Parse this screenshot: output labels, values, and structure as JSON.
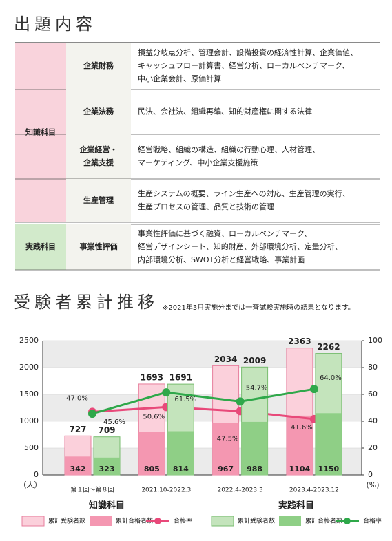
{
  "exam_content": {
    "title": "出題内容",
    "groups": [
      {
        "label": "知識科目",
        "rows": [
          {
            "subject": [
              "企業財務"
            ],
            "content": [
              "損益分岐点分析、管理会計、設備投資の経済性計算、企業価値、",
              "キャッシュフロー計算書、経営分析、ローカルベンチマーク、",
              "中小企業会計、原価計算"
            ]
          },
          {
            "subject": [
              "企業法務"
            ],
            "content": [
              "民法、会社法、組織再編、知的財産権に関する法律"
            ]
          },
          {
            "subject": [
              "企業経営・",
              "企業支援"
            ],
            "content": [
              "経営戦略、組織の構造、組織の行動心理、人材管理、",
              "マーケティング、中小企業支援施策"
            ]
          },
          {
            "subject": [
              "生産管理"
            ],
            "content": [
              "生産システムの概要、ライン生産への対応、生産管理の実行、",
              "生産プロセスの管理、品質と技術の管理"
            ]
          }
        ]
      },
      {
        "label": "実践科目",
        "rows": [
          {
            "subject": [
              "事業性評価"
            ],
            "content": [
              "事業性評価に基づく融資、ローカルベンチマーク、",
              "経営デザインシート、知的財産、外部環境分析、定量分析、",
              "内部環境分析、SWOT分析と経営戦略、事業計画"
            ]
          }
        ]
      }
    ]
  },
  "chart_data": {
    "type": "bar",
    "title": "受験者累計推移",
    "note": "※2021年3月実施分までは一斉試験実施時の結果となります。",
    "categories": [
      "第１回～第８回",
      "2021.10-2022.3",
      "2022.4-2023.3",
      "2023.4-2023.12"
    ],
    "ylabel": "（人）",
    "y2label": "(%)",
    "ylim": [
      0,
      2500
    ],
    "yticks": [
      0,
      500,
      1000,
      1500,
      2000,
      2500
    ],
    "y2lim": [
      0,
      100
    ],
    "y2ticks": [
      0,
      20,
      40,
      60,
      80,
      100
    ],
    "subjects": [
      {
        "name": "知識科目",
        "series": [
          {
            "name": "累計受験者数",
            "type": "bar",
            "color": "#fbd0db",
            "values": [
              727,
              1693,
              2034,
              2363
            ]
          },
          {
            "name": "累計合格者数",
            "type": "bar",
            "color": "#f497b1",
            "values": [
              342,
              805,
              967,
              1104
            ]
          },
          {
            "name": "合格率",
            "type": "line",
            "axis": "y2",
            "color": "#e8497a",
            "values": [
              47.0,
              50.6,
              47.5,
              41.6
            ],
            "value_labels": [
              "47.0%",
              "50.6%",
              "47.5%",
              "41.6%"
            ]
          }
        ]
      },
      {
        "name": "実践科目",
        "series": [
          {
            "name": "累計受験者数",
            "type": "bar",
            "color": "#c4e4bc",
            "values": [
              709,
              1691,
              2009,
              2262
            ]
          },
          {
            "name": "累計合格者数",
            "type": "bar",
            "color": "#8fcf86",
            "values": [
              323,
              814,
              988,
              1150
            ]
          },
          {
            "name": "合格率",
            "type": "line",
            "axis": "y2",
            "color": "#2fa84a",
            "values": [
              45.6,
              61.5,
              54.7,
              64.0
            ],
            "value_labels": [
              "45.6%",
              "61.5%",
              "54.7%",
              "64.0%"
            ]
          }
        ]
      }
    ]
  }
}
